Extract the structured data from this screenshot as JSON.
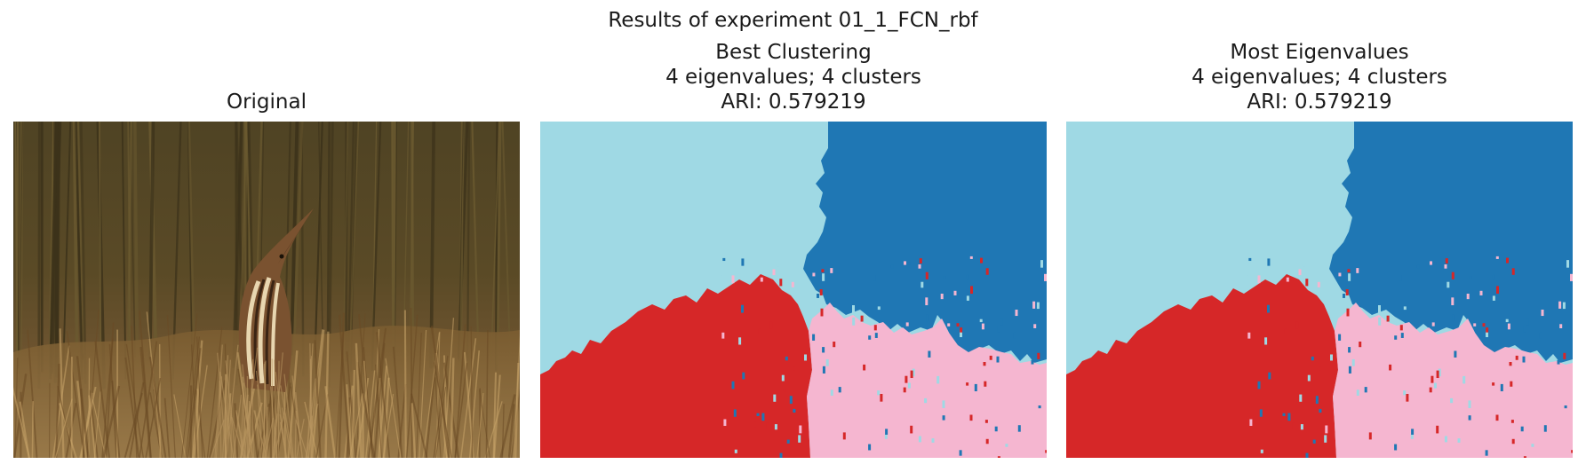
{
  "figure": {
    "suptitle": "Results of experiment 01_1_FCN_rbf"
  },
  "panels": [
    {
      "title_lines": [
        "Original"
      ]
    },
    {
      "title_lines": [
        "Best Clustering",
        "4 eigenvalues; 4 clusters",
        "ARI: 0.579219"
      ]
    },
    {
      "title_lines": [
        "Most Eigenvalues",
        "4 eigenvalues; 4 clusters",
        "ARI: 0.579219"
      ]
    }
  ],
  "colors": {
    "cluster_light_blue": "#9fd9e4",
    "cluster_dark_blue": "#1f77b4",
    "cluster_red": "#d62728",
    "cluster_pink": "#f5b6d0",
    "grass_dark": "#4a3a1e",
    "grass_light": "#8a6a3a"
  }
}
